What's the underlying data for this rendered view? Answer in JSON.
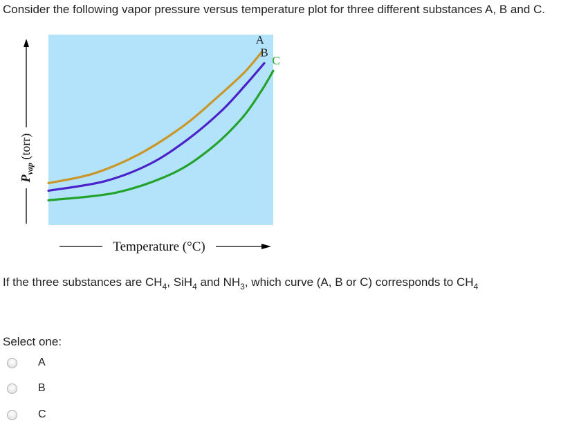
{
  "question": {
    "title": "Consider the following vapor pressure versus temperature plot for three different substances A, B and C.",
    "text_parts": {
      "intro": "If the three substances are CH",
      "sub1": "4",
      "comma1": ", SiH",
      "sub2": "4",
      "and": " and NH",
      "sub3": "3",
      "rest": ", which curve (A, B or C) corresponds to CH",
      "sub4": "4"
    }
  },
  "chart_data": {
    "type": "line",
    "title": "",
    "xlabel": "Temperature (°C)",
    "ylabel_main": "P",
    "ylabel_sub": "vap",
    "ylabel_unit": " (torr)",
    "xlim": [
      0,
      1
    ],
    "ylim": [
      0,
      1
    ],
    "grid": false,
    "background_color": "#b3e3fb",
    "axis_ticks": "none",
    "series": [
      {
        "name": "A",
        "color": "#c9962a",
        "x": [
          0,
          0.2,
          0.4,
          0.6,
          0.75,
          0.87,
          0.95
        ],
        "y": [
          0.22,
          0.27,
          0.37,
          0.52,
          0.67,
          0.8,
          0.91
        ]
      },
      {
        "name": "B",
        "color": "#4b22c9",
        "x": [
          0,
          0.25,
          0.45,
          0.62,
          0.77,
          0.88,
          0.96
        ],
        "y": [
          0.18,
          0.23,
          0.32,
          0.45,
          0.6,
          0.74,
          0.85
        ]
      },
      {
        "name": "C",
        "color": "#23a32b",
        "x": [
          0,
          0.3,
          0.55,
          0.72,
          0.86,
          0.95,
          1.0
        ],
        "y": [
          0.13,
          0.17,
          0.27,
          0.4,
          0.56,
          0.71,
          0.81
        ]
      }
    ]
  },
  "select": {
    "label": "Select one:",
    "options": [
      {
        "label": "A",
        "selected": false
      },
      {
        "label": "B",
        "selected": false
      },
      {
        "label": "C",
        "selected": false
      }
    ]
  }
}
